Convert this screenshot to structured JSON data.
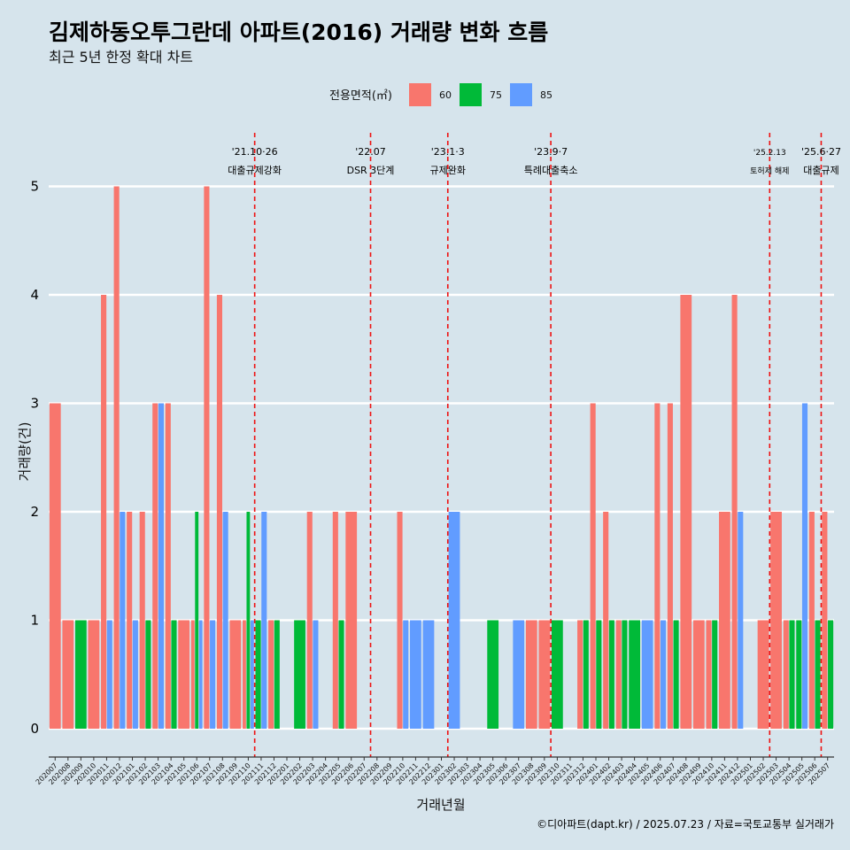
{
  "chart_data": {
    "type": "bar",
    "title": "김제하동오투그란데 아파트(2016) 거래량 변화 흐름",
    "subtitle": "최근 5년 한정 확대 차트",
    "xlabel": "거래년월",
    "ylabel": "거래량(건)",
    "ylim": [
      0,
      5.3
    ],
    "yticks": [
      0,
      1,
      2,
      3,
      4,
      5
    ],
    "grid": "horizontal",
    "legend_title": "전용면적(㎡)",
    "legend_position": "top",
    "categories": [
      "202007",
      "202008",
      "202009",
      "202010",
      "202011",
      "202012",
      "202101",
      "202102",
      "202103",
      "202104",
      "202105",
      "202106",
      "202107",
      "202108",
      "202109",
      "202110",
      "202111",
      "202112",
      "202201",
      "202202",
      "202203",
      "202204",
      "202205",
      "202206",
      "202207",
      "202208",
      "202209",
      "202210",
      "202211",
      "202212",
      "202301",
      "202302",
      "202303",
      "202304",
      "202305",
      "202306",
      "202307",
      "202308",
      "202309",
      "202310",
      "202311",
      "202312",
      "202401",
      "202402",
      "202403",
      "202404",
      "202405",
      "202406",
      "202407",
      "202408",
      "202409",
      "202410",
      "202411",
      "202412",
      "202501",
      "202502",
      "202503",
      "202504",
      "202505",
      "202506",
      "202507"
    ],
    "series": [
      {
        "name": "60",
        "color": "#f8766d",
        "values": [
          3,
          1,
          0,
          1,
          4,
          5,
          2,
          2,
          3,
          3,
          1,
          1,
          5,
          4,
          1,
          1,
          0,
          1,
          0,
          0,
          2,
          0,
          2,
          2,
          0,
          0,
          0,
          2,
          0,
          0,
          0,
          0,
          0,
          0,
          0,
          0,
          0,
          1,
          1,
          0,
          0,
          1,
          3,
          2,
          1,
          0,
          0,
          3,
          3,
          4,
          1,
          1,
          2,
          4,
          0,
          1,
          2,
          1,
          0,
          2,
          2
        ]
      },
      {
        "name": "75",
        "color": "#00ba38",
        "values": [
          0,
          0,
          1,
          0,
          0,
          0,
          0,
          1,
          0,
          1,
          0,
          2,
          0,
          0,
          0,
          2,
          1,
          1,
          0,
          1,
          0,
          0,
          1,
          0,
          0,
          0,
          0,
          0,
          0,
          0,
          0,
          0,
          0,
          0,
          1,
          0,
          0,
          0,
          0,
          1,
          0,
          1,
          1,
          1,
          1,
          1,
          0,
          0,
          1,
          0,
          0,
          1,
          0,
          0,
          0,
          0,
          0,
          1,
          1,
          1,
          1
        ]
      },
      {
        "name": "85",
        "color": "#619cff",
        "values": [
          0,
          0,
          0,
          0,
          1,
          2,
          1,
          0,
          3,
          0,
          0,
          1,
          1,
          2,
          0,
          1,
          2,
          0,
          0,
          0,
          1,
          0,
          0,
          0,
          0,
          0,
          0,
          1,
          1,
          1,
          0,
          2,
          0,
          0,
          0,
          0,
          1,
          0,
          0,
          0,
          0,
          0,
          0,
          0,
          0,
          0,
          1,
          1,
          0,
          0,
          0,
          0,
          0,
          2,
          0,
          0,
          0,
          0,
          3,
          0,
          0
        ]
      }
    ],
    "annotations": [
      {
        "date_label": "'21.10·26",
        "event": "대출규제강화",
        "after_category": "202110"
      },
      {
        "date_label": "'22.07",
        "event": "DSR 3단계",
        "after_category": "202207"
      },
      {
        "date_label": "'23.1·3",
        "event": "규제완화",
        "after_category": "202301"
      },
      {
        "date_label": "'23.9·7",
        "event": "특례대출축소",
        "after_category": "202309"
      },
      {
        "date_label": "'25.2.13",
        "event": "토허제 해제",
        "after_category": "202502"
      },
      {
        "date_label": "'25.6·27",
        "event": "대출규제",
        "after_category": "202506"
      }
    ]
  },
  "caption": "©디아파트(dapt.kr) / 2025.07.23 / 자료=국토교통부 실거래가"
}
